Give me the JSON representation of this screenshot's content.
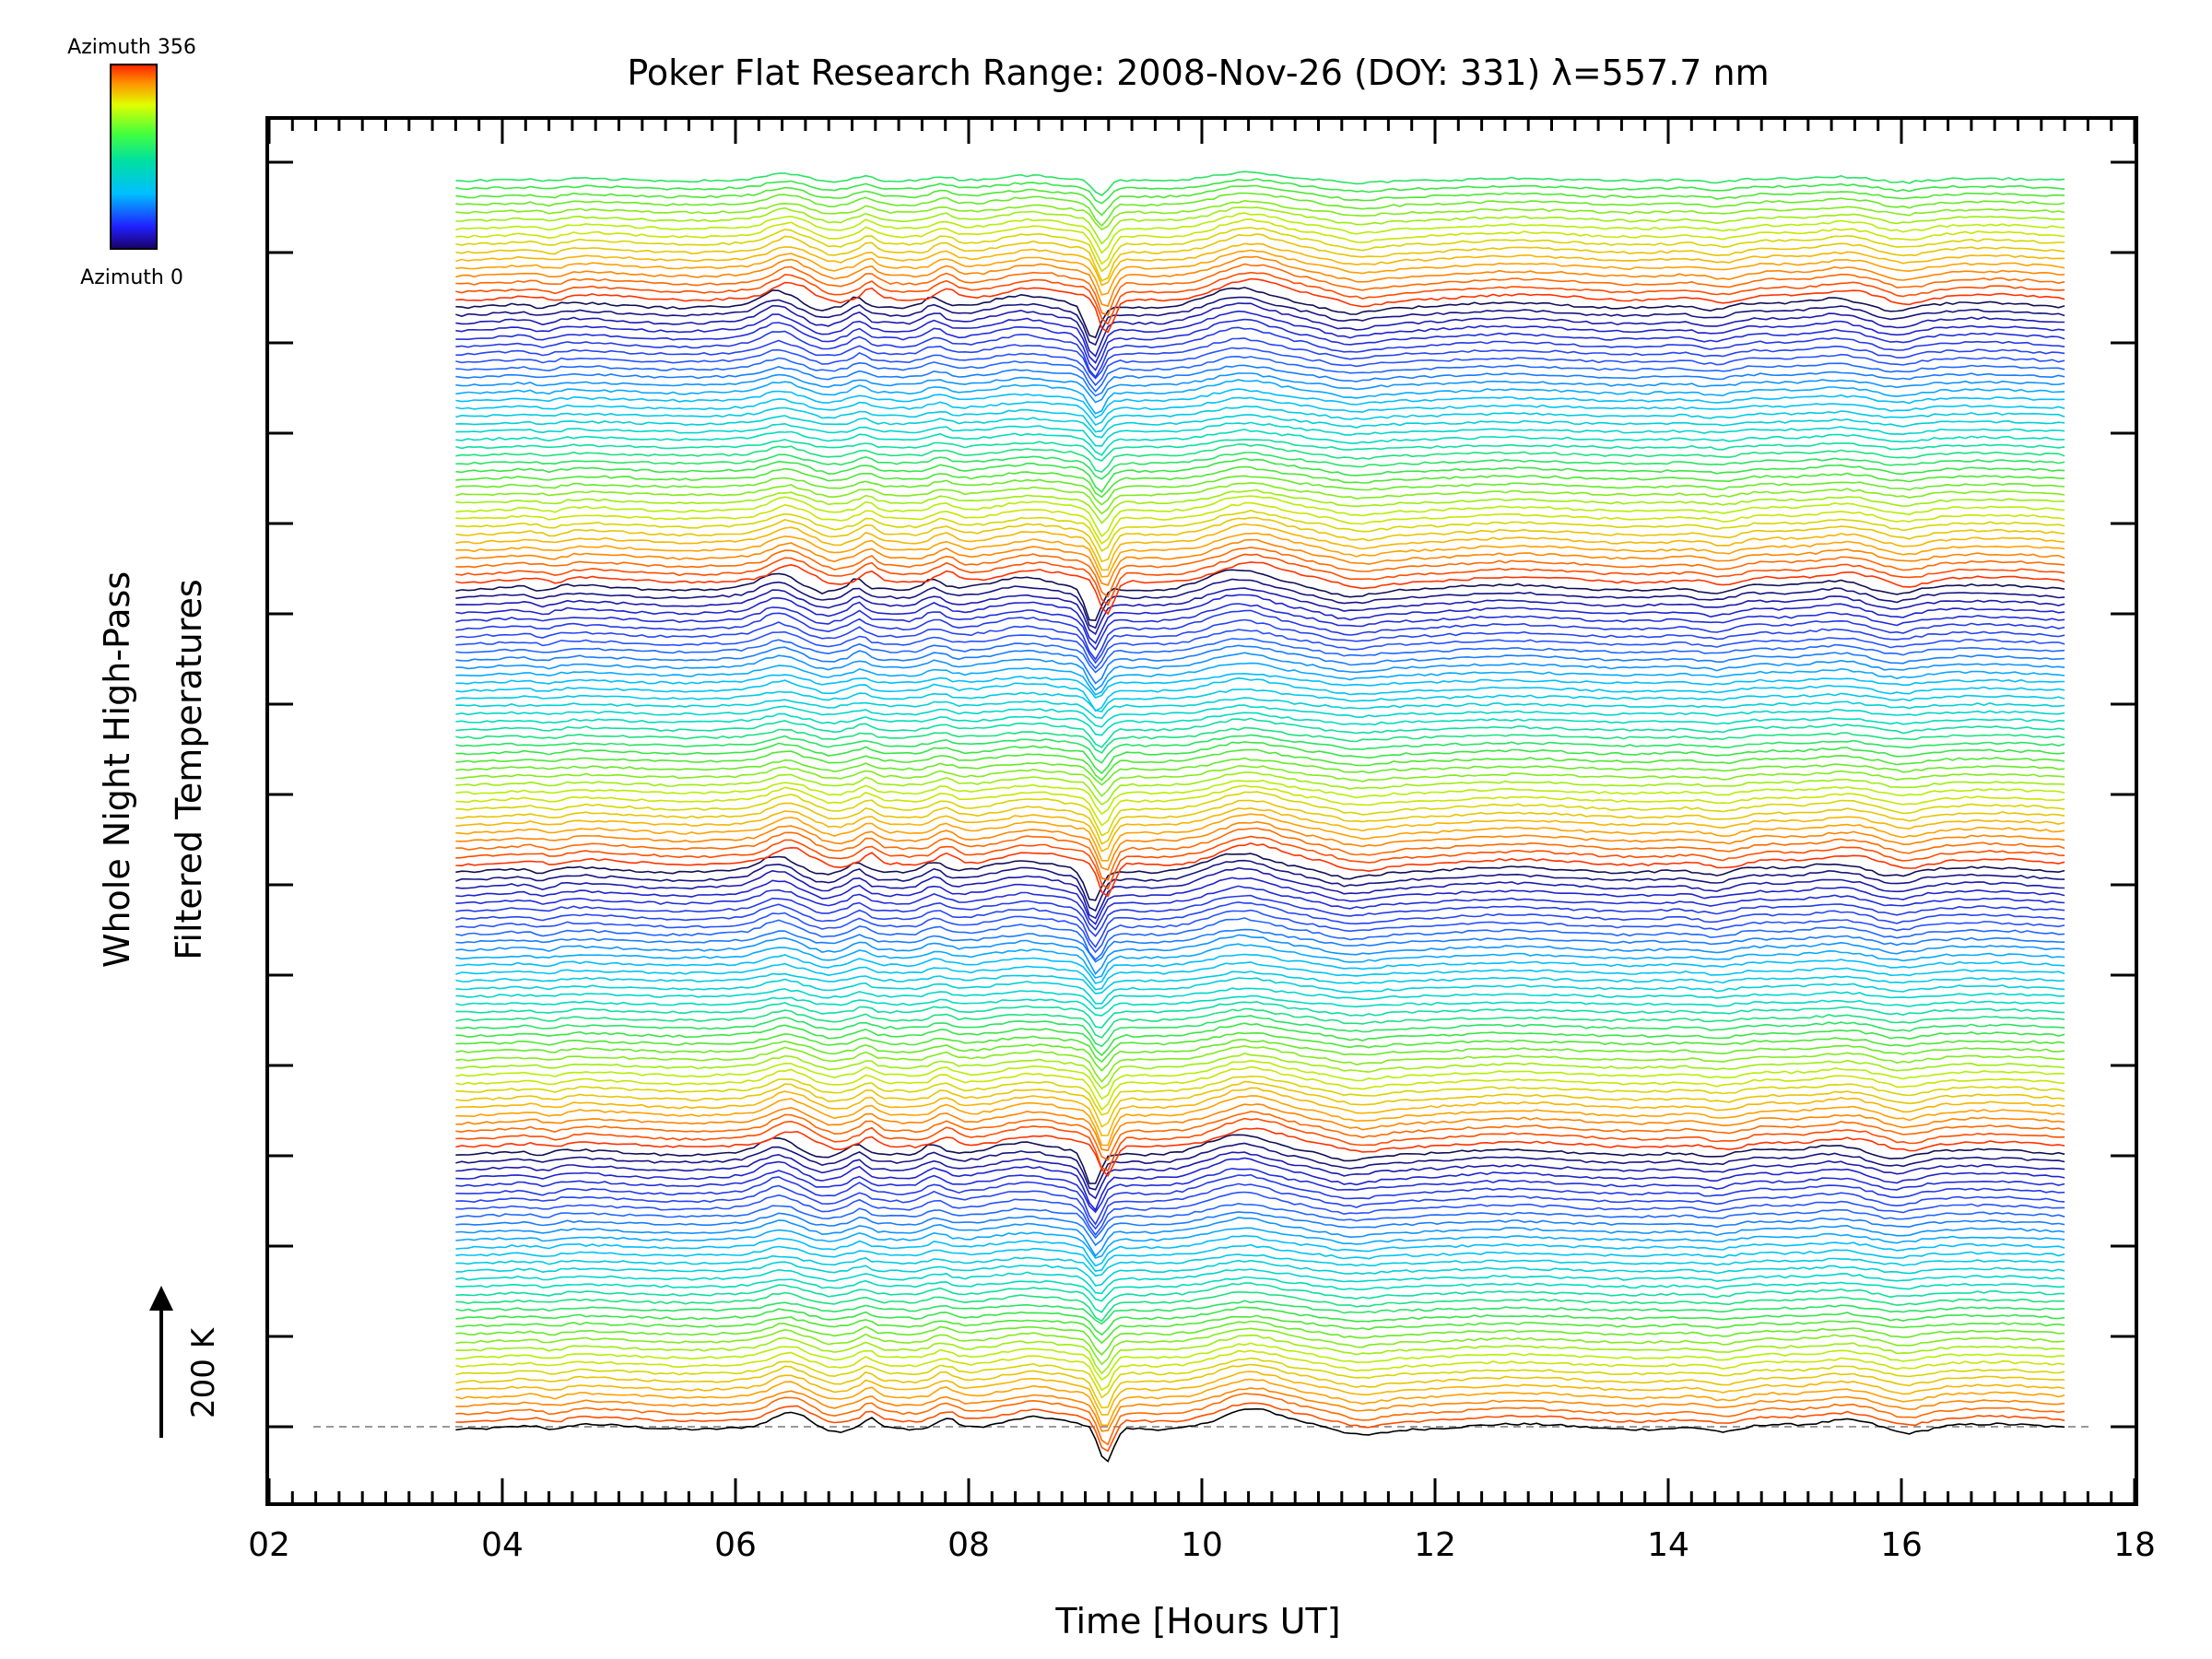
{
  "chart_data": {
    "type": "line",
    "title": "Poker Flat Research Range: 2008-Nov-26 (DOY: 331) λ=557.7 nm",
    "xlabel": "Time [Hours UT]",
    "ylabel_line1": "Whole Night High-Pass",
    "ylabel_line2": "Filtered Temperatures",
    "xlim": [
      2,
      18
    ],
    "x_tick_labels": [
      "02",
      "04",
      "06",
      "08",
      "10",
      "12",
      "14",
      "16",
      "18"
    ],
    "x_range_data": [
      3.6,
      17.4
    ],
    "scale_bar_label": "200 K",
    "colorbar": {
      "top_label": "Azimuth 356",
      "bottom_label": "Azimuth 0",
      "min": 0,
      "max": 356
    },
    "series_count": 160,
    "colors": [
      "#000000",
      "#1a1aff",
      "#00c8ff",
      "#00ff80",
      "#c8ff00",
      "#ff4000"
    ],
    "grid": false,
    "legend": "top-left colorbar"
  }
}
